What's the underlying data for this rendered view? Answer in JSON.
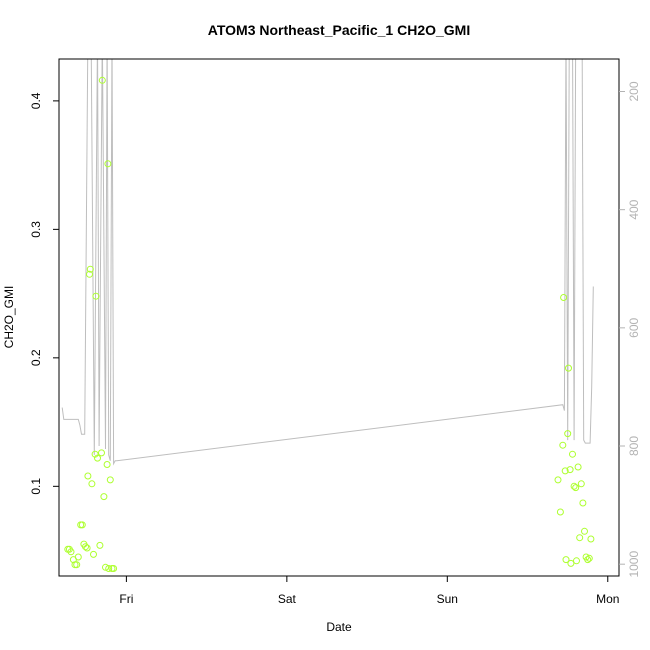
{
  "chart_data": {
    "type": "scatter",
    "title": "ATOM3 Northeast_Pacific_1 CH2O_GMI",
    "xlabel": "Date",
    "ylabel": "CH2O_GMI",
    "x_unit": "days since Thu 00:00",
    "xlim": [
      0.58,
      4.07
    ],
    "ylim": [
      0.0302,
      0.4326
    ],
    "x_ticks": [
      {
        "value": 1,
        "label": "Fri"
      },
      {
        "value": 2,
        "label": "Sat"
      },
      {
        "value": 3,
        "label": "Sun"
      },
      {
        "value": 4,
        "label": "Mon"
      }
    ],
    "y_ticks": [
      {
        "value": 0.1,
        "label": "0.1"
      },
      {
        "value": 0.2,
        "label": "0.2"
      },
      {
        "value": 0.3,
        "label": "0.3"
      },
      {
        "value": 0.4,
        "label": "0.4"
      }
    ],
    "y2_axis": {
      "reversed": true,
      "lim": [
        1020,
        145
      ],
      "ticks": [
        {
          "value": 200,
          "label": "200"
        },
        {
          "value": 400,
          "label": "400"
        },
        {
          "value": 600,
          "label": "600"
        },
        {
          "value": 800,
          "label": "800"
        },
        {
          "value": 1000,
          "label": "1000"
        }
      ]
    },
    "colors": {
      "points": "#adff2f",
      "line": "#bebebe",
      "axes": "#000000",
      "right_axis": "#b3b3b3"
    },
    "series": [
      {
        "type": "scatter",
        "color": "#adff2f",
        "points": [
          [
            0.635,
            0.051
          ],
          [
            0.645,
            0.051
          ],
          [
            0.655,
            0.049
          ],
          [
            0.67,
            0.043
          ],
          [
            0.68,
            0.039
          ],
          [
            0.69,
            0.039
          ],
          [
            0.7,
            0.045
          ],
          [
            0.715,
            0.07
          ],
          [
            0.725,
            0.07
          ],
          [
            0.735,
            0.055
          ],
          [
            0.745,
            0.053
          ],
          [
            0.755,
            0.052
          ],
          [
            0.76,
            0.108
          ],
          [
            0.77,
            0.265
          ],
          [
            0.775,
            0.269
          ],
          [
            0.785,
            0.102
          ],
          [
            0.795,
            0.047
          ],
          [
            0.805,
            0.125
          ],
          [
            0.81,
            0.248
          ],
          [
            0.82,
            0.122
          ],
          [
            0.835,
            0.054
          ],
          [
            0.845,
            0.126
          ],
          [
            0.85,
            0.416
          ],
          [
            0.86,
            0.092
          ],
          [
            0.87,
            0.037
          ],
          [
            0.88,
            0.117
          ],
          [
            0.885,
            0.351
          ],
          [
            0.89,
            0.036
          ],
          [
            0.9,
            0.105
          ],
          [
            0.91,
            0.036
          ],
          [
            0.92,
            0.036
          ],
          [
            3.69,
            0.105
          ],
          [
            3.705,
            0.08
          ],
          [
            3.72,
            0.132
          ],
          [
            3.725,
            0.247
          ],
          [
            3.735,
            0.112
          ],
          [
            3.74,
            0.043
          ],
          [
            3.75,
            0.141
          ],
          [
            3.755,
            0.192
          ],
          [
            3.765,
            0.113
          ],
          [
            3.77,
            0.04
          ],
          [
            3.78,
            0.125
          ],
          [
            3.79,
            0.1
          ],
          [
            3.8,
            0.099
          ],
          [
            3.805,
            0.042
          ],
          [
            3.815,
            0.115
          ],
          [
            3.825,
            0.06
          ],
          [
            3.835,
            0.102
          ],
          [
            3.845,
            0.087
          ],
          [
            3.855,
            0.065
          ],
          [
            3.865,
            0.045
          ],
          [
            3.875,
            0.043
          ],
          [
            3.885,
            0.044
          ],
          [
            3.895,
            0.059
          ]
        ]
      },
      {
        "type": "line",
        "axis": "right",
        "color": "#bebebe",
        "points": [
          [
            0.6,
            735
          ],
          [
            0.61,
            755
          ],
          [
            0.62,
            755
          ],
          [
            0.7,
            755
          ],
          [
            0.71,
            765
          ],
          [
            0.72,
            780
          ],
          [
            0.73,
            780
          ],
          [
            0.74,
            780
          ],
          [
            0.76,
            100
          ],
          [
            0.77,
            120
          ],
          [
            0.78,
            100
          ],
          [
            0.8,
            815
          ],
          [
            0.82,
            100
          ],
          [
            0.83,
            800
          ],
          [
            0.85,
            100
          ],
          [
            0.87,
            805
          ],
          [
            0.88,
            100
          ],
          [
            0.89,
            815
          ],
          [
            0.9,
            825
          ],
          [
            0.91,
            100
          ],
          [
            0.92,
            830
          ],
          [
            0.93,
            825
          ],
          [
            0.94,
            825
          ],
          [
            3.72,
            730
          ],
          [
            3.73,
            740
          ],
          [
            3.74,
            100
          ],
          [
            3.75,
            790
          ],
          [
            3.76,
            100
          ],
          [
            3.78,
            100
          ],
          [
            3.79,
            790
          ],
          [
            3.8,
            100
          ],
          [
            3.82,
            100
          ],
          [
            3.83,
            120
          ],
          [
            3.84,
            100
          ],
          [
            3.85,
            790
          ],
          [
            3.86,
            795
          ],
          [
            3.87,
            795
          ],
          [
            3.88,
            795
          ],
          [
            3.89,
            795
          ],
          [
            3.9,
            700
          ],
          [
            3.91,
            530
          ]
        ]
      }
    ]
  }
}
